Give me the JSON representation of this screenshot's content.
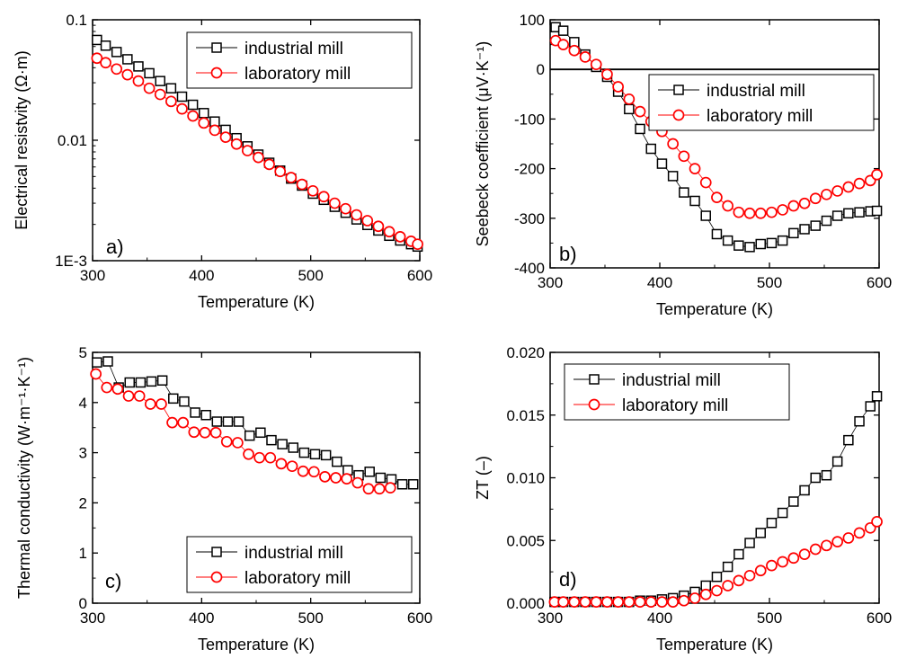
{
  "figure": {
    "panels": [
      "a)",
      "b)",
      "c)",
      "d)"
    ],
    "series_names": [
      "industrial mill",
      "laboratory mill"
    ],
    "colors": {
      "industrial": "#000000",
      "laboratory": "#ff0000"
    },
    "markers": {
      "industrial": "open-square",
      "laboratory": "open-circle"
    }
  },
  "chart_data": [
    {
      "type": "scatter",
      "panel": "a)",
      "xlabel": "Temperature (K)",
      "ylabel": "Electrical resistvity (Ω·m)",
      "xlim": [
        300,
        600
      ],
      "ylim": [
        0.001,
        0.1
      ],
      "yscale": "log",
      "xticks": [
        "300",
        "400",
        "500",
        "600"
      ],
      "yticks": [
        "1E-3",
        "0.01",
        "0.1"
      ],
      "legend": "top-right",
      "series": [
        {
          "name": "industrial mill",
          "x": [
            304,
            312,
            322,
            332,
            342,
            352,
            362,
            372,
            382,
            392,
            402,
            412,
            422,
            432,
            442,
            452,
            462,
            472,
            482,
            492,
            502,
            512,
            522,
            532,
            542,
            552,
            562,
            572,
            582,
            592,
            598
          ],
          "y": [
            0.068,
            0.061,
            0.054,
            0.047,
            0.041,
            0.036,
            0.031,
            0.027,
            0.023,
            0.0197,
            0.0168,
            0.0143,
            0.0122,
            0.0104,
            0.0089,
            0.0076,
            0.0065,
            0.0056,
            0.0048,
            0.0042,
            0.0036,
            0.0032,
            0.0028,
            0.0025,
            0.0022,
            0.00198,
            0.00178,
            0.00161,
            0.00147,
            0.00137,
            0.00131
          ]
        },
        {
          "name": "laboratory mill",
          "x": [
            304,
            312,
            322,
            332,
            342,
            352,
            362,
            372,
            382,
            392,
            402,
            412,
            422,
            432,
            442,
            452,
            462,
            472,
            482,
            492,
            502,
            512,
            522,
            532,
            542,
            552,
            562,
            572,
            582,
            592,
            598
          ],
          "y": [
            0.048,
            0.044,
            0.039,
            0.035,
            0.031,
            0.027,
            0.024,
            0.021,
            0.0182,
            0.0159,
            0.0139,
            0.0121,
            0.0106,
            0.0093,
            0.0082,
            0.0072,
            0.0063,
            0.0055,
            0.0049,
            0.0043,
            0.0038,
            0.0034,
            0.003,
            0.0027,
            0.0024,
            0.00215,
            0.00193,
            0.00174,
            0.00158,
            0.00145,
            0.00137
          ]
        }
      ]
    },
    {
      "type": "scatter",
      "panel": "b)",
      "xlabel": "Temperature (K)",
      "ylabel": "Seebeck coefficient (μV·K⁻¹)",
      "xlim": [
        300,
        600
      ],
      "ylim": [
        -400,
        100
      ],
      "xticks": [
        "300",
        "400",
        "500",
        "600"
      ],
      "yticks": [
        "-400",
        "-300",
        "-200",
        "-100",
        "0",
        "100"
      ],
      "zero_line": true,
      "legend": "top-right",
      "series": [
        {
          "name": "industrial mill",
          "x": [
            305,
            312,
            322,
            332,
            342,
            352,
            362,
            372,
            382,
            392,
            402,
            412,
            422,
            432,
            442,
            452,
            462,
            472,
            482,
            492,
            502,
            512,
            522,
            532,
            542,
            552,
            562,
            572,
            582,
            592,
            598
          ],
          "y": [
            85,
            78,
            55,
            30,
            5,
            -15,
            -45,
            -80,
            -120,
            -160,
            -190,
            -215,
            -248,
            -265,
            -295,
            -332,
            -345,
            -355,
            -358,
            -352,
            -350,
            -345,
            -330,
            -322,
            -315,
            -305,
            -295,
            -290,
            -288,
            -286,
            -285
          ]
        },
        {
          "name": "laboratory mill",
          "x": [
            305,
            312,
            322,
            332,
            342,
            352,
            362,
            372,
            382,
            392,
            402,
            412,
            422,
            432,
            442,
            452,
            462,
            472,
            482,
            492,
            502,
            512,
            522,
            532,
            542,
            552,
            562,
            572,
            582,
            592,
            598
          ],
          "y": [
            58,
            50,
            38,
            25,
            10,
            -10,
            -35,
            -60,
            -85,
            -105,
            -125,
            -150,
            -175,
            -200,
            -228,
            -258,
            -275,
            -288,
            -290,
            -290,
            -288,
            -283,
            -275,
            -270,
            -260,
            -252,
            -245,
            -237,
            -230,
            -224,
            -212
          ]
        }
      ]
    },
    {
      "type": "scatter",
      "panel": "c)",
      "xlabel": "Temperature (K)",
      "ylabel": "Thermal conductivity (W·m⁻¹·K⁻¹)",
      "xlim": [
        300,
        600
      ],
      "ylim": [
        0,
        5
      ],
      "xticks": [
        "300",
        "400",
        "500",
        "600"
      ],
      "yticks": [
        "0",
        "1",
        "2",
        "3",
        "4",
        "5"
      ],
      "legend": "bottom-right",
      "series": [
        {
          "name": "industrial mill",
          "x": [
            304,
            314,
            324,
            334,
            344,
            354,
            364,
            374,
            384,
            394,
            404,
            414,
            424,
            434,
            444,
            454,
            464,
            474,
            484,
            494,
            504,
            514,
            524,
            534,
            544,
            554,
            564,
            574,
            584,
            594
          ],
          "y": [
            4.8,
            4.82,
            4.3,
            4.4,
            4.4,
            4.42,
            4.44,
            4.08,
            4.02,
            3.8,
            3.75,
            3.62,
            3.62,
            3.62,
            3.34,
            3.4,
            3.25,
            3.17,
            3.1,
            3.0,
            2.97,
            2.95,
            2.82,
            2.65,
            2.55,
            2.62,
            2.5,
            2.47,
            2.37,
            2.37
          ]
        },
        {
          "name": "laboratory mill",
          "x": [
            303,
            313,
            323,
            333,
            343,
            353,
            363,
            373,
            383,
            393,
            403,
            413,
            423,
            433,
            443,
            453,
            463,
            473,
            483,
            493,
            503,
            513,
            523,
            533,
            543,
            553,
            563,
            573
          ],
          "y": [
            4.57,
            4.3,
            4.27,
            4.13,
            4.13,
            3.97,
            3.97,
            3.6,
            3.6,
            3.41,
            3.4,
            3.4,
            3.22,
            3.2,
            2.97,
            2.9,
            2.9,
            2.78,
            2.73,
            2.63,
            2.62,
            2.52,
            2.5,
            2.48,
            2.4,
            2.28,
            2.28,
            2.3
          ]
        }
      ]
    },
    {
      "type": "scatter",
      "panel": "d)",
      "xlabel": "Temperature (K)",
      "ylabel": "ZT (–)",
      "xlim": [
        300,
        600
      ],
      "ylim": [
        0,
        0.02
      ],
      "xticks": [
        "300",
        "400",
        "500",
        "600"
      ],
      "yticks": [
        "0.000",
        "0.005",
        "0.010",
        "0.015",
        "0.020"
      ],
      "legend": "top-left",
      "series": [
        {
          "name": "industrial mill",
          "x": [
            304,
            312,
            322,
            332,
            342,
            352,
            362,
            372,
            382,
            392,
            402,
            412,
            422,
            432,
            442,
            452,
            462,
            472,
            482,
            492,
            502,
            512,
            522,
            532,
            542,
            552,
            562,
            572,
            582,
            592,
            598
          ],
          "y": [
            0.0001,
            0.0001,
            0.0001,
            0.0001,
            0.0001,
            0.0001,
            0.0001,
            0.0001,
            0.0002,
            0.0002,
            0.0003,
            0.0004,
            0.0006,
            0.0009,
            0.0014,
            0.0021,
            0.0029,
            0.0039,
            0.0048,
            0.0056,
            0.0064,
            0.0072,
            0.0081,
            0.009,
            0.01,
            0.0102,
            0.0113,
            0.013,
            0.0145,
            0.0157,
            0.0165
          ]
        },
        {
          "name": "laboratory mill",
          "x": [
            304,
            312,
            322,
            332,
            342,
            352,
            362,
            372,
            382,
            392,
            402,
            412,
            422,
            432,
            442,
            452,
            462,
            472,
            482,
            492,
            502,
            512,
            522,
            532,
            542,
            552,
            562,
            572,
            582,
            592,
            598
          ],
          "y": [
            0.0001,
            0.0001,
            0.0001,
            0.0001,
            0.0001,
            0.0001,
            0.0001,
            0.0001,
            0.0001,
            0.0001,
            0.0001,
            0.0001,
            0.0002,
            0.0004,
            0.0007,
            0.001,
            0.0014,
            0.0018,
            0.0022,
            0.0026,
            0.003,
            0.0033,
            0.0036,
            0.0039,
            0.0043,
            0.0046,
            0.0049,
            0.0052,
            0.0056,
            0.006,
            0.0065
          ]
        }
      ]
    }
  ]
}
